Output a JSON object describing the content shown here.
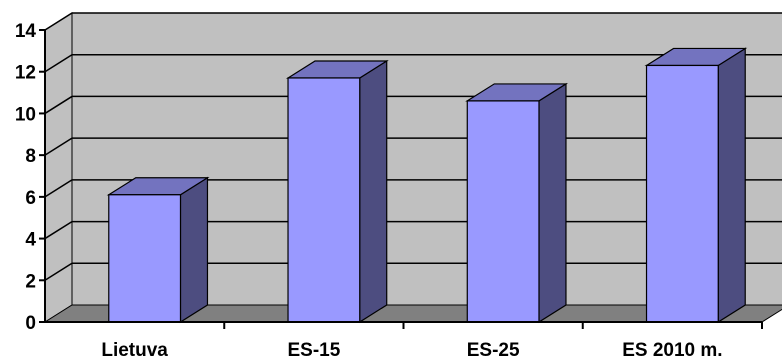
{
  "chart_data": {
    "type": "bar",
    "style": "3d-column",
    "categories": [
      "Lietuva",
      "ES-15",
      "ES-25",
      "ES 2010 m."
    ],
    "values": [
      6.1,
      11.7,
      10.6,
      12.3
    ],
    "title": "",
    "xlabel": "",
    "ylabel": "",
    "ylim": [
      0,
      14
    ],
    "yticks": [
      0,
      2,
      4,
      6,
      8,
      10,
      12,
      14
    ],
    "grid": true,
    "legend": "none"
  },
  "colors": {
    "wall": "#c0c0c0",
    "floor": "#808080",
    "bar_front": "#9999ff",
    "bar_side": "#4d4d80",
    "bar_top": "#7373bf",
    "outline": "#000000"
  }
}
